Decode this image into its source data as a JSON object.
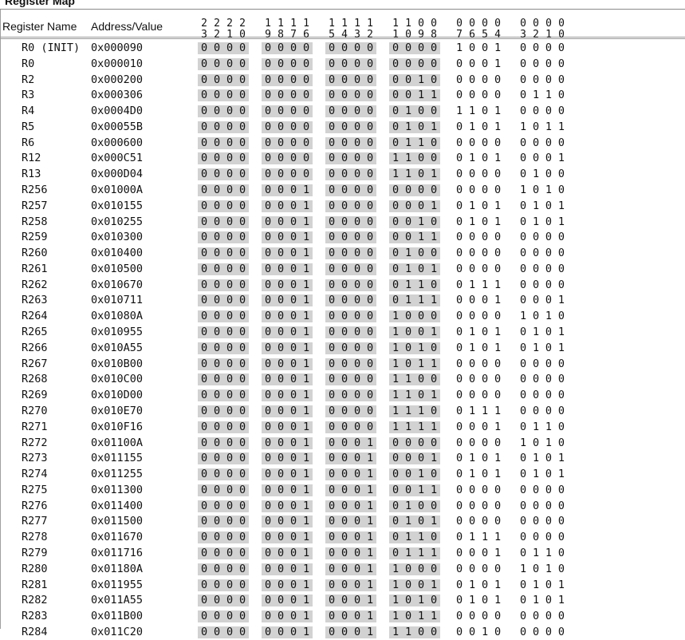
{
  "title": "Register Map",
  "columns": {
    "name": "Register Name",
    "address": "Address/Value"
  },
  "bit_headers": [
    [
      "2",
      "3"
    ],
    [
      "2",
      "2"
    ],
    [
      "2",
      "1"
    ],
    [
      "2",
      "0"
    ],
    [
      "1",
      "9"
    ],
    [
      "1",
      "8"
    ],
    [
      "1",
      "7"
    ],
    [
      "1",
      "6"
    ],
    [
      "1",
      "5"
    ],
    [
      "1",
      "4"
    ],
    [
      "1",
      "3"
    ],
    [
      "1",
      "2"
    ],
    [
      "1",
      "1"
    ],
    [
      "1",
      "0"
    ],
    [
      "0",
      "9"
    ],
    [
      "0",
      "8"
    ],
    [
      "0",
      "7"
    ],
    [
      "0",
      "6"
    ],
    [
      "0",
      "5"
    ],
    [
      "0",
      "4"
    ],
    [
      "0",
      "3"
    ],
    [
      "0",
      "2"
    ],
    [
      "0",
      "1"
    ],
    [
      "0",
      "0"
    ]
  ],
  "shade_color": "#d2d2d2",
  "rows": [
    {
      "name": "R0 (INIT)",
      "address": "0x000090",
      "bits": "0000 0000 0000 0000 1001 0000"
    },
    {
      "name": "R0",
      "address": "0x000010",
      "bits": "0000 0000 0000 0000 0001 0000"
    },
    {
      "name": "R2",
      "address": "0x000200",
      "bits": "0000 0000 0000 0010 0000 0000"
    },
    {
      "name": "R3",
      "address": "0x000306",
      "bits": "0000 0000 0000 0011 0000 0110"
    },
    {
      "name": "R4",
      "address": "0x0004D0",
      "bits": "0000 0000 0000 0100 1101 0000"
    },
    {
      "name": "R5",
      "address": "0x00055B",
      "bits": "0000 0000 0000 0101 0101 1011"
    },
    {
      "name": "R6",
      "address": "0x000600",
      "bits": "0000 0000 0000 0110 0000 0000"
    },
    {
      "name": "R12",
      "address": "0x000C51",
      "bits": "0000 0000 0000 1100 0101 0001"
    },
    {
      "name": "R13",
      "address": "0x000D04",
      "bits": "0000 0000 0000 1101 0000 0100"
    },
    {
      "name": "R256",
      "address": "0x01000A",
      "bits": "0000 0001 0000 0000 0000 1010"
    },
    {
      "name": "R257",
      "address": "0x010155",
      "bits": "0000 0001 0000 0001 0101 0101"
    },
    {
      "name": "R258",
      "address": "0x010255",
      "bits": "0000 0001 0000 0010 0101 0101"
    },
    {
      "name": "R259",
      "address": "0x010300",
      "bits": "0000 0001 0000 0011 0000 0000"
    },
    {
      "name": "R260",
      "address": "0x010400",
      "bits": "0000 0001 0000 0100 0000 0000"
    },
    {
      "name": "R261",
      "address": "0x010500",
      "bits": "0000 0001 0000 0101 0000 0000"
    },
    {
      "name": "R262",
      "address": "0x010670",
      "bits": "0000 0001 0000 0110 0111 0000"
    },
    {
      "name": "R263",
      "address": "0x010711",
      "bits": "0000 0001 0000 0111 0001 0001"
    },
    {
      "name": "R264",
      "address": "0x01080A",
      "bits": "0000 0001 0000 1000 0000 1010"
    },
    {
      "name": "R265",
      "address": "0x010955",
      "bits": "0000 0001 0000 1001 0101 0101"
    },
    {
      "name": "R266",
      "address": "0x010A55",
      "bits": "0000 0001 0000 1010 0101 0101"
    },
    {
      "name": "R267",
      "address": "0x010B00",
      "bits": "0000 0001 0000 1011 0000 0000"
    },
    {
      "name": "R268",
      "address": "0x010C00",
      "bits": "0000 0001 0000 1100 0000 0000"
    },
    {
      "name": "R269",
      "address": "0x010D00",
      "bits": "0000 0001 0000 1101 0000 0000"
    },
    {
      "name": "R270",
      "address": "0x010E70",
      "bits": "0000 0001 0000 1110 0111 0000"
    },
    {
      "name": "R271",
      "address": "0x010F16",
      "bits": "0000 0001 0000 1111 0001 0110"
    },
    {
      "name": "R272",
      "address": "0x01100A",
      "bits": "0000 0001 0001 0000 0000 1010"
    },
    {
      "name": "R273",
      "address": "0x011155",
      "bits": "0000 0001 0001 0001 0101 0101"
    },
    {
      "name": "R274",
      "address": "0x011255",
      "bits": "0000 0001 0001 0010 0101 0101"
    },
    {
      "name": "R275",
      "address": "0x011300",
      "bits": "0000 0001 0001 0011 0000 0000"
    },
    {
      "name": "R276",
      "address": "0x011400",
      "bits": "0000 0001 0001 0100 0000 0000"
    },
    {
      "name": "R277",
      "address": "0x011500",
      "bits": "0000 0001 0001 0101 0000 0000"
    },
    {
      "name": "R278",
      "address": "0x011670",
      "bits": "0000 0001 0001 0110 0111 0000"
    },
    {
      "name": "R279",
      "address": "0x011716",
      "bits": "0000 0001 0001 0111 0001 0110"
    },
    {
      "name": "R280",
      "address": "0x01180A",
      "bits": "0000 0001 0001 1000 0000 1010"
    },
    {
      "name": "R281",
      "address": "0x011955",
      "bits": "0000 0001 0001 1001 0101 0101"
    },
    {
      "name": "R282",
      "address": "0x011A55",
      "bits": "0000 0001 0001 1010 0101 0101"
    },
    {
      "name": "R283",
      "address": "0x011B00",
      "bits": "0000 0001 0001 1011 0000 0000"
    },
    {
      "name": "R284",
      "address": "0x011C20",
      "bits": "0000 0001 0001 1100 0010 0000"
    }
  ]
}
